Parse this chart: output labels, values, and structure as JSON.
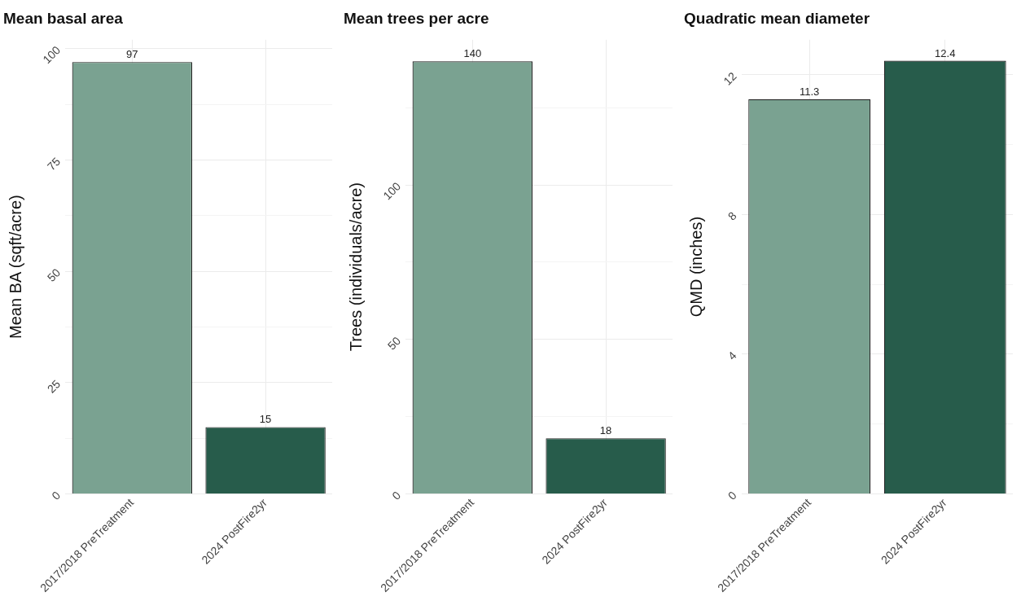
{
  "chart_data": [
    {
      "type": "bar",
      "title": "Mean basal area",
      "ylabel": "Mean BA (sqft/acre)",
      "categories": [
        "2017/2018 PreTreatment",
        "2024 PostFire2yr"
      ],
      "values": [
        97,
        15
      ],
      "colors": [
        "#7aa291",
        "#275c4b"
      ],
      "ylim": [
        0,
        102
      ],
      "yticks": [
        0,
        {
          "value": 12.5,
          "label": null
        },
        25,
        {
          "value": 37.5,
          "label": null
        },
        50,
        {
          "value": 62.5,
          "label": null
        },
        75,
        {
          "value": 87.5,
          "label": null
        },
        100
      ],
      "grid": true,
      "data_labels": true
    },
    {
      "type": "bar",
      "title": "Mean trees per acre",
      "ylabel": "Trees (individuals/acre)",
      "categories": [
        "2017/2018 PreTreatment",
        "2024 PostFire2yr"
      ],
      "values": [
        140,
        18
      ],
      "colors": [
        "#7aa291",
        "#275c4b"
      ],
      "ylim": [
        0,
        147
      ],
      "yticks": [
        0,
        {
          "value": 25,
          "label": null
        },
        50,
        {
          "value": 75,
          "label": null
        },
        100,
        {
          "value": 125,
          "label": null
        }
      ],
      "grid": true,
      "data_labels": true
    },
    {
      "type": "bar",
      "title": "Quadratic mean diameter",
      "ylabel": "QMD (inches)",
      "categories": [
        "2017/2018 PreTreatment",
        "2024 PostFire2yr"
      ],
      "values": [
        11.3,
        12.4
      ],
      "colors": [
        "#7aa291",
        "#275c4b"
      ],
      "ylim": [
        0,
        13
      ],
      "yticks": [
        0,
        {
          "value": 2,
          "label": null
        },
        4,
        {
          "value": 6,
          "label": null
        },
        8,
        {
          "value": 10,
          "label": null
        },
        12
      ],
      "grid": true,
      "data_labels": true
    }
  ]
}
